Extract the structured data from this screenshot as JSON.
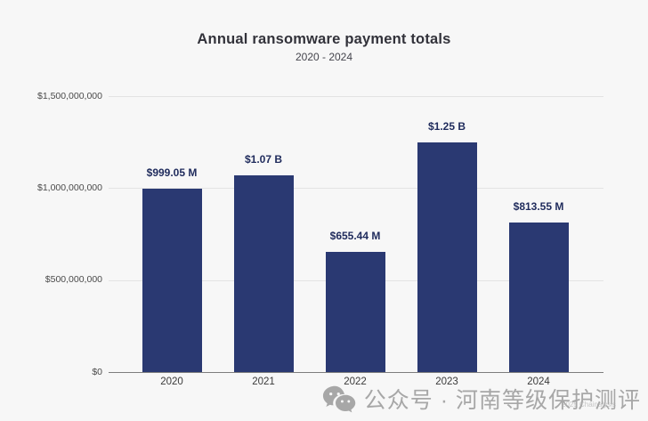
{
  "chart_data": {
    "type": "bar",
    "title": "Annual ransomware payment totals",
    "subtitle": "2020 - 2024",
    "categories": [
      "2020",
      "2021",
      "2022",
      "2023",
      "2024"
    ],
    "values": [
      999050000,
      1070000000,
      655440000,
      1250000000,
      813550000
    ],
    "value_labels": [
      "$999.05 M",
      "$1.07 B",
      "$655.44 M",
      "$1.25 B",
      "$813.55 M"
    ],
    "y_tick_values": [
      0,
      500000000,
      1000000000,
      1500000000
    ],
    "y_tick_labels": [
      "$0",
      "$500,000,000",
      "$1,000,000,000",
      "$1,500,000,000"
    ],
    "ylim": [
      0,
      1500000000
    ],
    "xlabel": "",
    "ylabel": "",
    "grid": true,
    "legend": false,
    "colors": {
      "bar": "#2a3972",
      "value_label": "#1f2b5c",
      "gridline": "#e3e3e3",
      "axis_line": "#7d7d7d",
      "background": "#f7f7f7"
    }
  },
  "watermark": {
    "icon": "wechat-icon",
    "text": "公众号 · 河南等级保护测评",
    "credit": "2025 Chainalysis"
  }
}
